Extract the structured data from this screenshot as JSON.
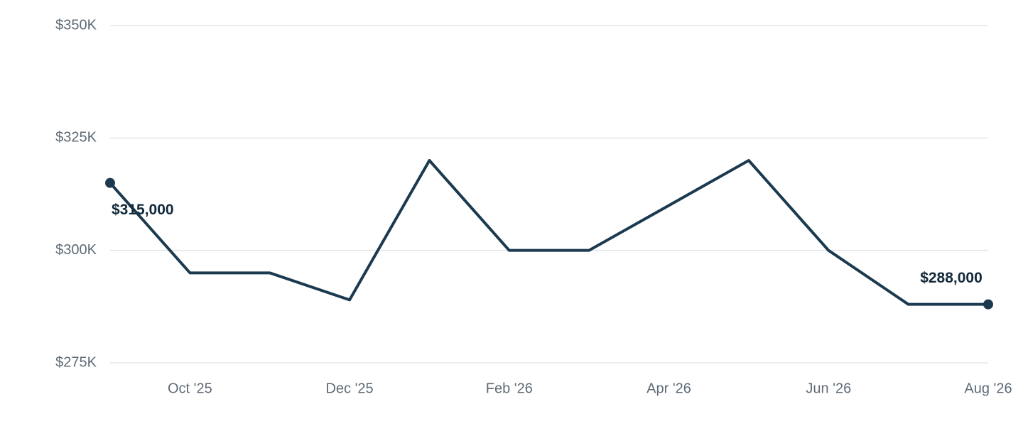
{
  "chart_data": {
    "type": "line",
    "categories": [
      null,
      "Oct '25",
      null,
      "Dec '25",
      null,
      "Feb '26",
      null,
      "Apr '26",
      null,
      "Jun '26",
      null,
      "Aug '26"
    ],
    "values": [
      315000,
      295000,
      295000,
      289000,
      320000,
      300000,
      300000,
      310000,
      320000,
      300000,
      288000,
      288000
    ],
    "value_labels": [
      "$315,000",
      null,
      null,
      null,
      null,
      null,
      null,
      null,
      null,
      null,
      null,
      "$288,000"
    ],
    "color": "#1b3a4f",
    "ylim": [
      275000,
      350000
    ],
    "yticks": [
      {
        "value": 275000,
        "label": "$275K"
      },
      {
        "value": 300000,
        "label": "$300K"
      },
      {
        "value": 325000,
        "label": "$325K"
      },
      {
        "value": 350000,
        "label": "$350K"
      }
    ],
    "grid": true
  }
}
